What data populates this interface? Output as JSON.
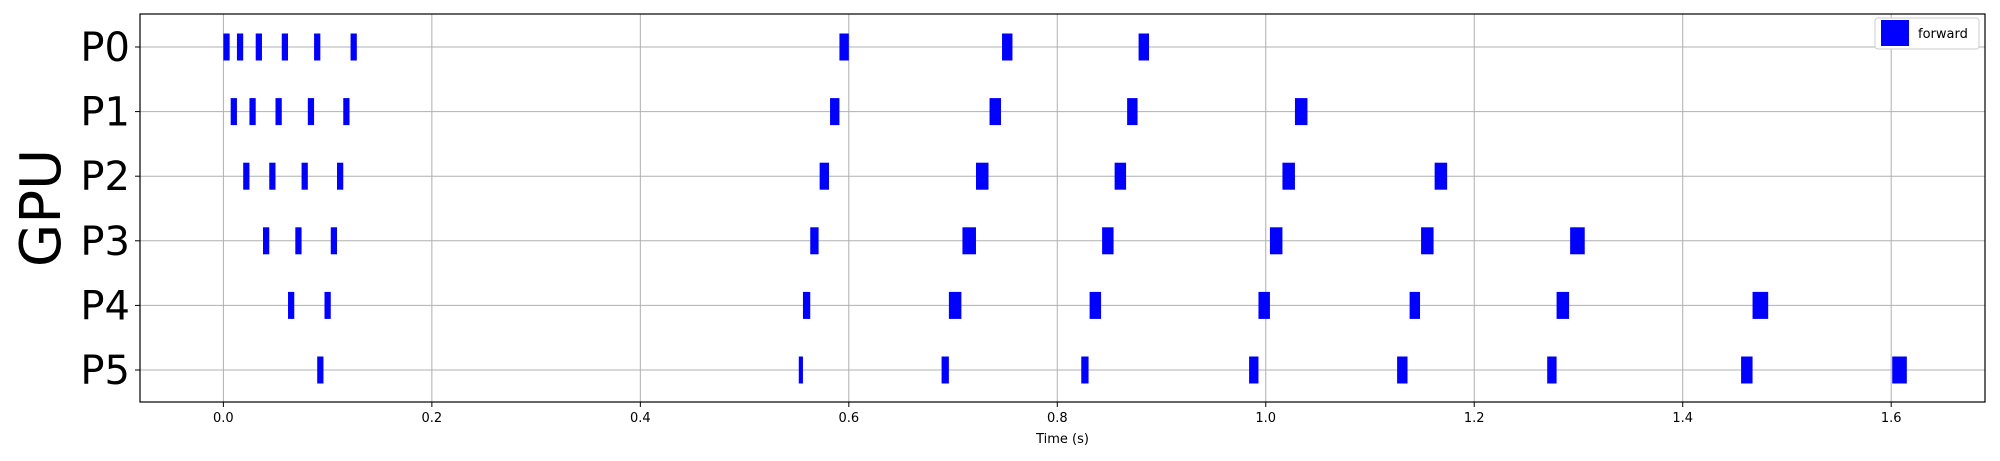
{
  "chart_data": {
    "type": "gantt",
    "xlabel": "Time (s)",
    "ylabel": "GPU",
    "xlim": [
      -0.08,
      1.69
    ],
    "x_ticks": [
      0.0,
      0.2,
      0.4,
      0.6,
      0.8,
      1.0,
      1.2,
      1.4,
      1.6
    ],
    "x_tick_labels": [
      "0.0",
      "0.2",
      "0.4",
      "0.6",
      "0.8",
      "1.0",
      "1.2",
      "1.4",
      "1.6"
    ],
    "categories": [
      "P0",
      "P1",
      "P2",
      "P3",
      "P4",
      "P5"
    ],
    "grid": true,
    "legend": {
      "position": "top-right",
      "entries": [
        {
          "name": "forward",
          "color": "#0000ff"
        }
      ]
    },
    "series": [
      {
        "name": "forward",
        "color": "#0000ff",
        "tasks": {
          "P0": [
            [
              0.0,
              0.006
            ],
            [
              0.013,
              0.019
            ],
            [
              0.031,
              0.037
            ],
            [
              0.056,
              0.062
            ],
            [
              0.087,
              0.093
            ],
            [
              0.122,
              0.128
            ],
            [
              0.591,
              0.6
            ],
            [
              0.747,
              0.757
            ],
            [
              0.878,
              0.888
            ]
          ],
          "P1": [
            [
              0.007,
              0.013
            ],
            [
              0.025,
              0.031
            ],
            [
              0.05,
              0.056
            ],
            [
              0.081,
              0.087
            ],
            [
              0.115,
              0.121
            ],
            [
              0.582,
              0.591
            ],
            [
              0.735,
              0.746
            ],
            [
              0.867,
              0.877
            ],
            [
              1.028,
              1.04
            ]
          ],
          "P2": [
            [
              0.019,
              0.025
            ],
            [
              0.044,
              0.05
            ],
            [
              0.075,
              0.081
            ],
            [
              0.109,
              0.115
            ],
            [
              0.572,
              0.581
            ],
            [
              0.722,
              0.734
            ],
            [
              0.855,
              0.866
            ],
            [
              1.016,
              1.028
            ],
            [
              1.162,
              1.174
            ]
          ],
          "P3": [
            [
              0.038,
              0.044
            ],
            [
              0.069,
              0.075
            ],
            [
              0.103,
              0.109
            ],
            [
              0.563,
              0.571
            ],
            [
              0.709,
              0.722
            ],
            [
              0.843,
              0.854
            ],
            [
              1.004,
              1.016
            ],
            [
              1.149,
              1.161
            ],
            [
              1.292,
              1.306
            ]
          ],
          "P4": [
            [
              0.062,
              0.068
            ],
            [
              0.097,
              0.103
            ],
            [
              0.556,
              0.563
            ],
            [
              0.696,
              0.708
            ],
            [
              0.831,
              0.842
            ],
            [
              0.993,
              1.004
            ],
            [
              1.138,
              1.148
            ],
            [
              1.279,
              1.291
            ],
            [
              1.467,
              1.482
            ]
          ],
          "P5": [
            [
              0.09,
              0.096
            ],
            [
              0.552,
              0.556
            ],
            [
              0.689,
              0.696
            ],
            [
              0.823,
              0.83
            ],
            [
              0.984,
              0.993
            ],
            [
              1.126,
              1.136
            ],
            [
              1.27,
              1.279
            ],
            [
              1.456,
              1.467
            ],
            [
              1.601,
              1.615
            ]
          ]
        }
      }
    ]
  }
}
